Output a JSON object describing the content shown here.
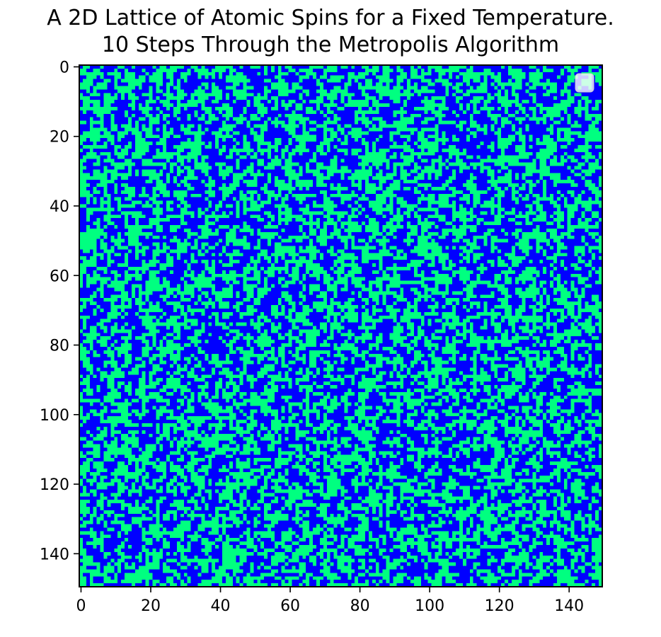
{
  "chart_data": {
    "type": "heatmap",
    "title_lines": [
      "A 2D Lattice of Atomic Spins for a Fixed Temperature.",
      "10 Steps Through the Metropolis Algorithm"
    ],
    "xlabel": "",
    "ylabel": "",
    "grid_size": 150,
    "xlim": [
      -0.5,
      149.5
    ],
    "ylim": [
      149.5,
      -0.5
    ],
    "x_ticks": [
      0,
      20,
      40,
      60,
      80,
      100,
      120,
      140
    ],
    "x_tick_labels": [
      "0",
      "20",
      "40",
      "60",
      "80",
      "100",
      "120",
      "140"
    ],
    "y_ticks": [
      0,
      20,
      40,
      60,
      80,
      100,
      120,
      140
    ],
    "y_tick_labels": [
      "0",
      "20",
      "40",
      "60",
      "80",
      "100",
      "120",
      "140"
    ],
    "spin_values": [
      -1,
      1
    ],
    "spin_colors": {
      "-1": "#0000ff",
      "1": "#00ff80"
    },
    "approx_fraction_spin_up": 0.5,
    "colormap": "winter",
    "legend": "empty legend box, top-right",
    "grid": false
  }
}
